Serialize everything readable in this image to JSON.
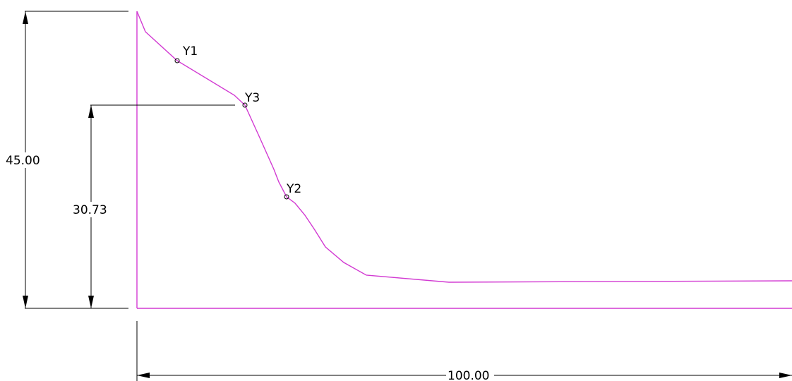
{
  "colors": {
    "profile": "#d23ad2",
    "dimension": "#000000",
    "background": "#ffffff"
  },
  "dimensions": {
    "total_height": "45.00",
    "marked_height": "30.73",
    "total_length": "100.00"
  },
  "points": [
    {
      "label": "Y1"
    },
    {
      "label": "Y3"
    },
    {
      "label": "Y2"
    }
  ]
}
